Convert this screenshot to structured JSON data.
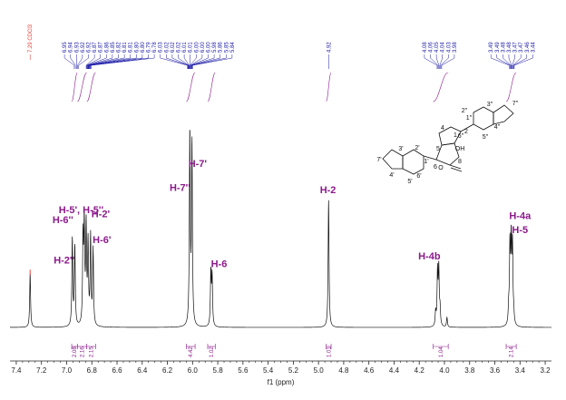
{
  "chart_data": {
    "type": "line",
    "xlabel": "f1 (ppm)",
    "xlim": [
      7.45,
      3.15
    ],
    "x_reversed": true,
    "x_ticks": [
      "7.4",
      "7.2",
      "7.0",
      "6.8",
      "6.6",
      "6.4",
      "6.2",
      "6.0",
      "5.8",
      "5.6",
      "5.4",
      "5.2",
      "5.0",
      "4.8",
      "4.6",
      "4.4",
      "4.2",
      "4.0",
      "3.8",
      "3.6",
      "3.4",
      "3.2"
    ],
    "solvent_label": "7.29 CDCl3",
    "solvent_color": "#e8403a",
    "peak_pick_color": "#1a1aa6",
    "label_color": "#8b1a8b",
    "peak_groups": [
      {
        "x": 6.922,
        "labels": [
          "6.95",
          "6.94",
          "6.93",
          "6.92",
          "6.92"
        ]
      },
      {
        "x": 6.825,
        "labels": [
          "6.87",
          "6.87",
          "6.86",
          "6.85",
          "6.82",
          "6.81",
          "6.81",
          "6.80",
          "6.80",
          "6.79",
          "6.78"
        ]
      },
      {
        "x": 6.02,
        "labels": [
          "6.03",
          "6.02",
          "6.02",
          "6.02",
          "6.01",
          "6.01",
          "6.00",
          "6.00",
          "6.00",
          "5.98",
          "5.86",
          "5.85",
          "5.84"
        ]
      },
      {
        "x": 4.92,
        "labels": [
          "4.92"
        ]
      },
      {
        "x": 4.04,
        "labels": [
          "4.08",
          "4.06",
          "4.05",
          "4.04",
          "4.03",
          "3.98"
        ]
      },
      {
        "x": 3.465,
        "labels": [
          "3.49",
          "3.49",
          "3.48",
          "3.48",
          "3.47",
          "3.47",
          "3.46",
          "3.44"
        ]
      }
    ],
    "peaks": [
      {
        "x": 7.29,
        "h": 0.27
      },
      {
        "x": 6.955,
        "h": 0.44
      },
      {
        "x": 6.935,
        "h": 0.4
      },
      {
        "x": 6.87,
        "h": 0.42
      },
      {
        "x": 6.86,
        "h": 0.49
      },
      {
        "x": 6.845,
        "h": 0.48
      },
      {
        "x": 6.83,
        "h": 0.4
      },
      {
        "x": 6.81,
        "h": 0.44
      },
      {
        "x": 6.79,
        "h": 0.38
      },
      {
        "x": 6.022,
        "h": 0.965
      },
      {
        "x": 6.005,
        "h": 0.91
      },
      {
        "x": 5.855,
        "h": 0.27
      },
      {
        "x": 5.845,
        "h": 0.25
      },
      {
        "x": 4.92,
        "h": 0.64
      },
      {
        "x": 4.07,
        "h": 0.07
      },
      {
        "x": 4.055,
        "h": 0.27
      },
      {
        "x": 4.045,
        "h": 0.28
      },
      {
        "x": 4.035,
        "h": 0.08
      },
      {
        "x": 3.98,
        "h": 0.05
      },
      {
        "x": 3.49,
        "h": 0.08
      },
      {
        "x": 3.48,
        "h": 0.39
      },
      {
        "x": 3.47,
        "h": 0.4
      },
      {
        "x": 3.46,
        "h": 0.39
      },
      {
        "x": 3.45,
        "h": 0.05
      }
    ],
    "assignments": [
      {
        "text": "H-6''",
        "x": 7.03,
        "h": 0.52
      },
      {
        "text": "H-2''",
        "x": 7.02,
        "h": 0.32
      },
      {
        "text": "H-5', H-5''",
        "x": 6.885,
        "h": 0.57
      },
      {
        "text": "H-2'",
        "x": 6.73,
        "h": 0.55
      },
      {
        "text": "H-6'",
        "x": 6.72,
        "h": 0.42
      },
      {
        "text": "H-7''",
        "x": 6.1,
        "h": 0.68
      },
      {
        "text": "H-7'",
        "x": 5.96,
        "h": 0.8
      },
      {
        "text": "H-6",
        "x": 5.79,
        "h": 0.3
      },
      {
        "text": "H-2",
        "x": 4.925,
        "h": 0.67
      },
      {
        "text": "H-4b",
        "x": 4.12,
        "h": 0.34
      },
      {
        "text": "H-4a",
        "x": 3.4,
        "h": 0.54
      },
      {
        "text": "H-5",
        "x": 3.4,
        "h": 0.47
      }
    ],
    "integrals": [
      {
        "from": 6.96,
        "to": 6.915,
        "value": "2.08"
      },
      {
        "from": 6.915,
        "to": 6.84,
        "value": "2.16"
      },
      {
        "from": 6.84,
        "to": 6.77,
        "value": "2.15"
      },
      {
        "from": 6.05,
        "to": 5.98,
        "value": "4.42"
      },
      {
        "from": 5.88,
        "to": 5.82,
        "value": "1.02"
      },
      {
        "from": 4.94,
        "to": 4.9,
        "value": "1.01"
      },
      {
        "from": 4.09,
        "to": 3.97,
        "value": "1.04"
      },
      {
        "from": 3.51,
        "to": 3.43,
        "value": "2.14"
      }
    ]
  },
  "structure": {
    "atoms": [
      "7''",
      "2''",
      "3''",
      "4''",
      "6''",
      "5''",
      "1''",
      "2",
      "4",
      "5",
      "1",
      "OH",
      "8",
      "O",
      "7'",
      "2'",
      "3'",
      "4'",
      "1'",
      "6",
      "6'",
      "5'"
    ]
  }
}
